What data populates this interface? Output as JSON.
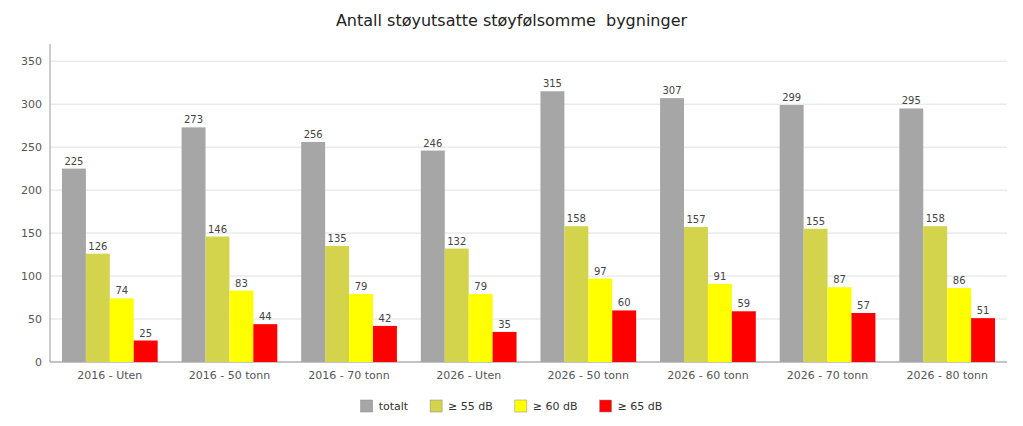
{
  "chart_data": {
    "type": "bar",
    "title": "Antall støyutsatte støyfølsomme  bygninger",
    "categories": [
      "2016 - Uten",
      "2016 - 50 tonn",
      "2016 - 70 tonn",
      "2026 - Uten",
      "2026 - 50 tonn",
      "2026 - 60 tonn",
      "2026 - 70 tonn",
      "2026 - 80 tonn"
    ],
    "series": [
      {
        "name": "totalt",
        "color": "#a6a6a6",
        "values": [
          225,
          273,
          256,
          246,
          315,
          307,
          299,
          295
        ]
      },
      {
        "name": "≥ 55 dB",
        "color": "#d4d44c",
        "values": [
          126,
          146,
          135,
          132,
          158,
          157,
          155,
          158
        ]
      },
      {
        "name": "≥ 60 dB",
        "color": "#ffff00",
        "values": [
          74,
          83,
          79,
          79,
          97,
          91,
          87,
          86
        ]
      },
      {
        "name": "≥ 65 dB",
        "color": "#ff0000",
        "values": [
          25,
          44,
          42,
          35,
          60,
          59,
          57,
          51
        ]
      }
    ],
    "ylim": [
      0,
      370
    ],
    "yticks": [
      0,
      50,
      100,
      150,
      200,
      250,
      300,
      350
    ],
    "grid": true,
    "legend": "bottom",
    "data_labels": true
  }
}
